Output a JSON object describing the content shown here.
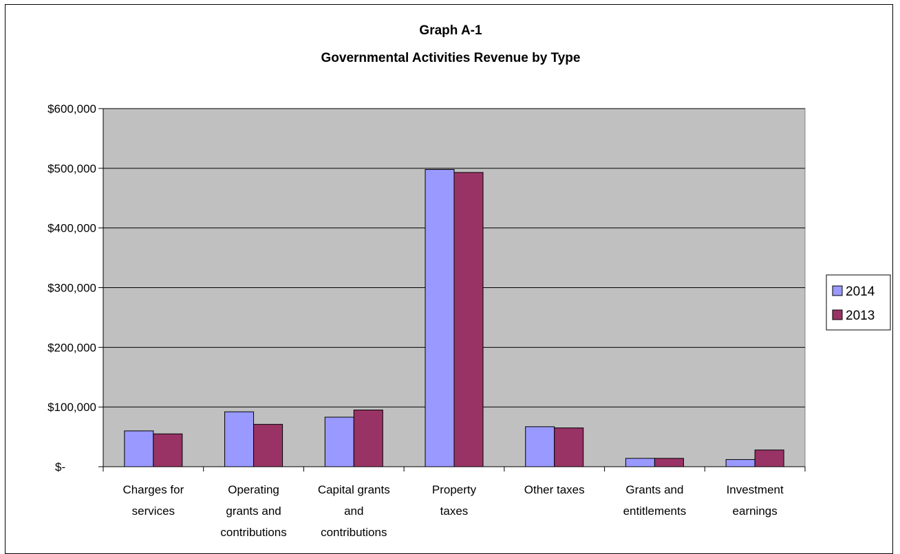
{
  "chart_data": {
    "type": "bar",
    "title": [
      "Graph A-1",
      "Governmental Activities Revenue by Type"
    ],
    "xlabel": "",
    "ylabel": "",
    "ylim": [
      0,
      600000
    ],
    "yticks": [
      0,
      100000,
      200000,
      300000,
      400000,
      500000,
      600000
    ],
    "ytick_labels": [
      "$-",
      "$100,000",
      "$200,000",
      "$300,000",
      "$400,000",
      "$500,000",
      "$600,000"
    ],
    "categories": [
      [
        "Charges for",
        "services"
      ],
      [
        "Operating",
        "grants and",
        "contributions"
      ],
      [
        "Capital grants",
        "and",
        "contributions"
      ],
      [
        "Property",
        "taxes"
      ],
      [
        "Other taxes"
      ],
      [
        "Grants and",
        "entitlements"
      ],
      [
        "Investment",
        "earnings"
      ]
    ],
    "series": [
      {
        "name": "2014",
        "color": "#9999ff",
        "values": [
          60000,
          92000,
          83000,
          498000,
          67000,
          14000,
          12000
        ]
      },
      {
        "name": "2013",
        "color": "#993366",
        "values": [
          55000,
          71000,
          95000,
          493000,
          65000,
          14000,
          28000
        ]
      }
    ],
    "grid": true,
    "plot_background": "#c0c0c0",
    "legend_position": "right"
  }
}
